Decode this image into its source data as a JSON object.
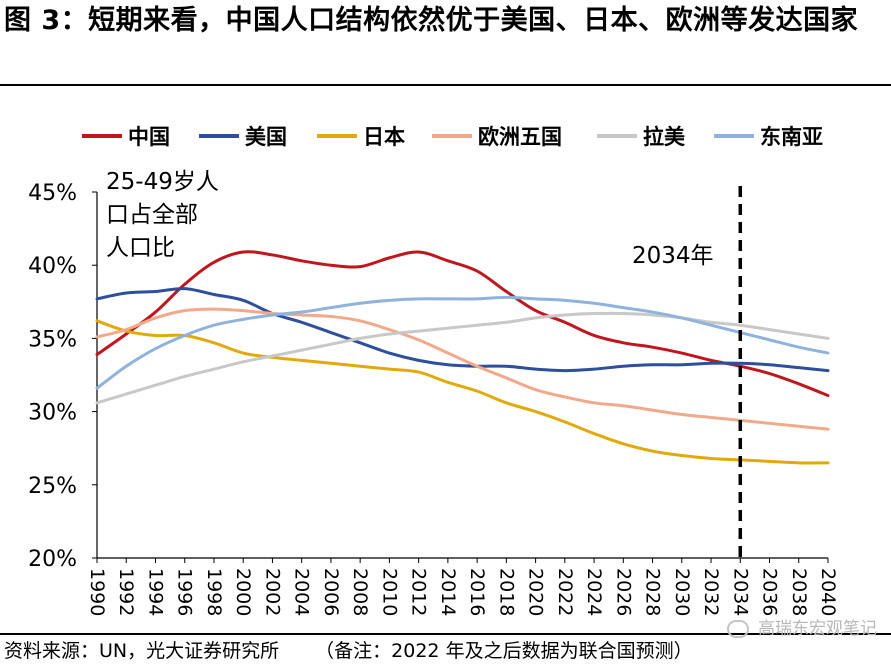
{
  "title": "图 3：短期来看，中国人口结构依然优于美国、日本、欧洲等发达国家",
  "footer": {
    "source": "资料来源：UN，光大证券研究所",
    "note": "（备注：2022 年及之后数据为联合国预测）",
    "watermark": "高瑞东宏观笔记"
  },
  "chart_data": {
    "type": "line",
    "title": "",
    "xlabel": "",
    "ylabel": "",
    "annotation_text": [
      "25-49岁人",
      "口占全部",
      "人口比"
    ],
    "vline": {
      "x": 2034,
      "label": "2034年",
      "style": "dashed"
    },
    "ylim": [
      0.2,
      0.45
    ],
    "xlim": [
      1990,
      2040
    ],
    "yticks": [
      0.2,
      0.25,
      0.3,
      0.35,
      0.4,
      0.45
    ],
    "ytick_labels": [
      "20%",
      "25%",
      "30%",
      "35%",
      "40%",
      "45%"
    ],
    "xticks": [
      1990,
      1992,
      1994,
      1996,
      1998,
      2000,
      2002,
      2004,
      2006,
      2008,
      2010,
      2012,
      2014,
      2016,
      2018,
      2020,
      2022,
      2024,
      2026,
      2028,
      2030,
      2032,
      2034,
      2036,
      2038,
      2040
    ],
    "legend_position": "top",
    "x": [
      1990,
      1992,
      1994,
      1996,
      1998,
      2000,
      2002,
      2004,
      2006,
      2008,
      2010,
      2012,
      2014,
      2016,
      2018,
      2020,
      2022,
      2024,
      2026,
      2028,
      2030,
      2032,
      2034,
      2036,
      2038,
      2040
    ],
    "series": [
      {
        "name": "中国",
        "color": "#c0161e",
        "values": [
          0.339,
          0.353,
          0.368,
          0.387,
          0.402,
          0.409,
          0.407,
          0.403,
          0.4,
          0.399,
          0.405,
          0.409,
          0.403,
          0.396,
          0.382,
          0.369,
          0.361,
          0.352,
          0.347,
          0.344,
          0.34,
          0.335,
          0.331,
          0.326,
          0.319,
          0.311
        ]
      },
      {
        "name": "美国",
        "color": "#2e4f9c",
        "values": [
          0.377,
          0.381,
          0.382,
          0.384,
          0.38,
          0.376,
          0.367,
          0.361,
          0.354,
          0.347,
          0.34,
          0.335,
          0.332,
          0.331,
          0.331,
          0.329,
          0.328,
          0.329,
          0.331,
          0.332,
          0.332,
          0.333,
          0.333,
          0.332,
          0.33,
          0.328
        ]
      },
      {
        "name": "日本",
        "color": "#e2a90c",
        "values": [
          0.362,
          0.355,
          0.352,
          0.352,
          0.347,
          0.34,
          0.337,
          0.335,
          0.333,
          0.331,
          0.329,
          0.327,
          0.32,
          0.314,
          0.306,
          0.3,
          0.293,
          0.285,
          0.278,
          0.273,
          0.27,
          0.268,
          0.267,
          0.266,
          0.265,
          0.265
        ]
      },
      {
        "name": "欧洲五国",
        "color": "#f1a98a",
        "values": [
          0.351,
          0.356,
          0.364,
          0.369,
          0.37,
          0.369,
          0.367,
          0.366,
          0.365,
          0.362,
          0.356,
          0.349,
          0.34,
          0.331,
          0.323,
          0.315,
          0.31,
          0.306,
          0.304,
          0.301,
          0.298,
          0.296,
          0.294,
          0.292,
          0.29,
          0.288
        ]
      },
      {
        "name": "拉美",
        "color": "#c8c8c8",
        "values": [
          0.306,
          0.312,
          0.318,
          0.324,
          0.329,
          0.334,
          0.338,
          0.342,
          0.346,
          0.35,
          0.353,
          0.355,
          0.357,
          0.359,
          0.361,
          0.364,
          0.366,
          0.367,
          0.367,
          0.366,
          0.364,
          0.361,
          0.359,
          0.356,
          0.353,
          0.35
        ]
      },
      {
        "name": "东南亚",
        "color": "#8fb3dd",
        "values": [
          0.316,
          0.331,
          0.343,
          0.352,
          0.359,
          0.363,
          0.366,
          0.368,
          0.371,
          0.374,
          0.376,
          0.377,
          0.377,
          0.377,
          0.378,
          0.377,
          0.376,
          0.374,
          0.371,
          0.368,
          0.364,
          0.359,
          0.354,
          0.349,
          0.344,
          0.34
        ]
      }
    ]
  }
}
